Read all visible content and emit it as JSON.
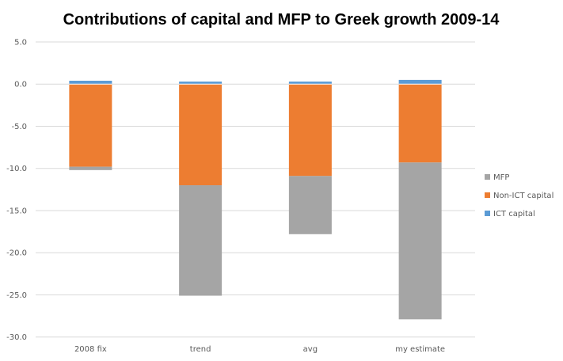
{
  "chart_data": {
    "type": "bar",
    "stacked": true,
    "title": "Contributions  of capital and MFP to Greek growth 2009-14",
    "xlabel": "",
    "ylabel": "",
    "ylim": [
      -30,
      5
    ],
    "yticks": [
      5,
      0,
      -5,
      -10,
      -15,
      -20,
      -25,
      -30
    ],
    "ytick_labels": [
      "5.0",
      "0.0",
      "-5.0",
      "-10.0",
      "-15.0",
      "-20.0",
      "-25.0",
      "-30.0"
    ],
    "grid": true,
    "legend_position": "right",
    "categories": [
      "2008 fix",
      "trend",
      "avg",
      "my estimate"
    ],
    "series": [
      {
        "name": "ICT capital",
        "color": "#5b9bd5",
        "values": [
          0.4,
          0.3,
          0.3,
          0.5
        ]
      },
      {
        "name": "Non-ICT capital",
        "color": "#ed7d31",
        "values": [
          -9.8,
          -12.0,
          -10.9,
          -9.3
        ]
      },
      {
        "name": "MFP",
        "color": "#a5a5a5",
        "values": [
          -0.4,
          -13.1,
          -6.9,
          -18.6
        ]
      }
    ],
    "legend_order": [
      "MFP",
      "Non-ICT capital",
      "ICT capital"
    ]
  }
}
